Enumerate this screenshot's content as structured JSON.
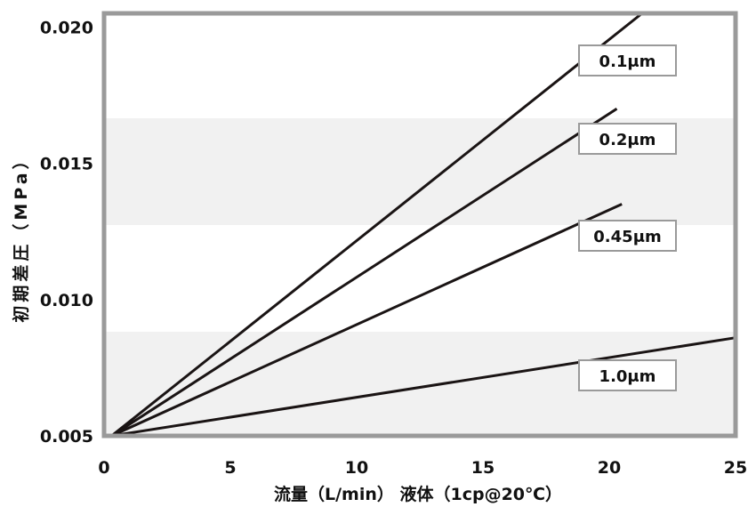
{
  "chart_data": {
    "type": "line",
    "xlabel": "流量（L/min） 液体（1cp@20℃）",
    "ylabel": "初期差圧（MPa）",
    "xlim": [
      0,
      25
    ],
    "ylim": [
      0.005,
      0.0205
    ],
    "x_ticks": [
      "0",
      "5",
      "10",
      "15",
      "20",
      "25"
    ],
    "y_ticks": [
      "0.005",
      "0.010",
      "0.015",
      "0.020"
    ],
    "grid": false,
    "colors": {
      "line": "#1a1414",
      "frame": "#9a9a9a",
      "band": "#f1f1f1",
      "label_border": "#9a9a9a"
    },
    "series": [
      {
        "name": "0.1μm",
        "x": [
          0.3,
          21.3
        ],
        "y": [
          0.005,
          0.0205
        ]
      },
      {
        "name": "0.2μm",
        "x": [
          0.3,
          20.3
        ],
        "y": [
          0.005,
          0.017
        ]
      },
      {
        "name": "0.45μm",
        "x": [
          0.3,
          20.5
        ],
        "y": [
          0.005,
          0.0135
        ]
      },
      {
        "name": "1.0μm",
        "x": [
          0.3,
          25.0
        ],
        "y": [
          0.005,
          0.0086
        ]
      }
    ]
  }
}
